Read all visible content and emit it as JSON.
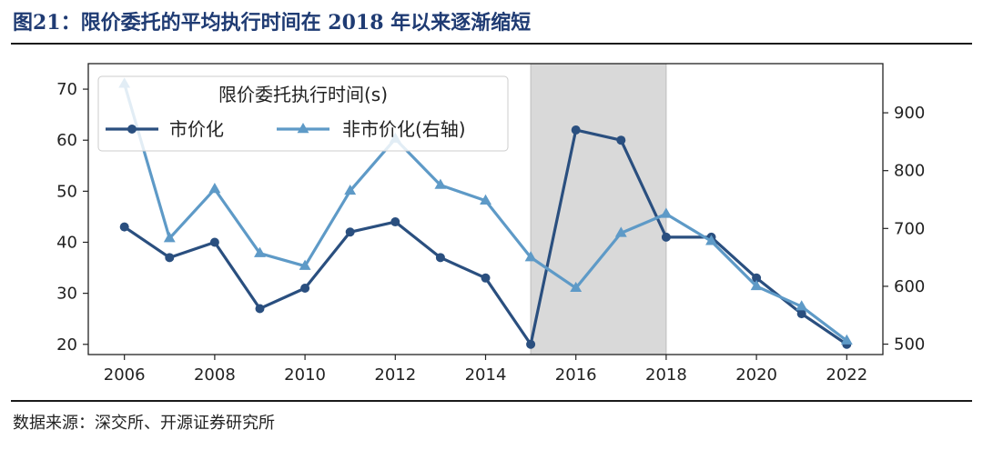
{
  "figure": {
    "title": "图21：限价委托的平均执行时间在 2018 年以来逐渐缩短",
    "source": "数据来源：深交所、开源证券研究所"
  },
  "chart_data": {
    "type": "line",
    "legend_title": "限价委托执行时间(s)",
    "legend_position": "top-left",
    "x": [
      2006,
      2007,
      2008,
      2009,
      2010,
      2011,
      2012,
      2013,
      2014,
      2015,
      2016,
      2017,
      2018,
      2019,
      2020,
      2021,
      2022
    ],
    "x_ticks": [
      "2006",
      "2008",
      "2010",
      "2012",
      "2014",
      "2016",
      "2018",
      "2020",
      "2022"
    ],
    "xlim": [
      2005.2,
      2022.8
    ],
    "ylim_left": [
      18,
      75
    ],
    "yticks_left": [
      "20",
      "30",
      "40",
      "50",
      "60",
      "70"
    ],
    "ylim_right": [
      482,
      985
    ],
    "yticks_right": [
      "500",
      "600",
      "700",
      "800",
      "900"
    ],
    "shaded_region": [
      2015,
      2018
    ],
    "grid": false,
    "series": [
      {
        "name": "市价化",
        "axis": "left",
        "color": "#2a4f7f",
        "marker": "circle",
        "values": [
          43,
          37,
          40,
          27,
          31,
          42,
          44,
          37,
          33,
          20,
          62,
          60,
          41,
          41,
          33,
          26,
          20
        ]
      },
      {
        "name": "非市价化(右轴)",
        "axis": "right",
        "color": "#5e9ac7",
        "marker": "triangle",
        "values": [
          950,
          683,
          768,
          657,
          635,
          765,
          855,
          775,
          748,
          650,
          597,
          692,
          725,
          678,
          600,
          565,
          506
        ]
      }
    ]
  }
}
